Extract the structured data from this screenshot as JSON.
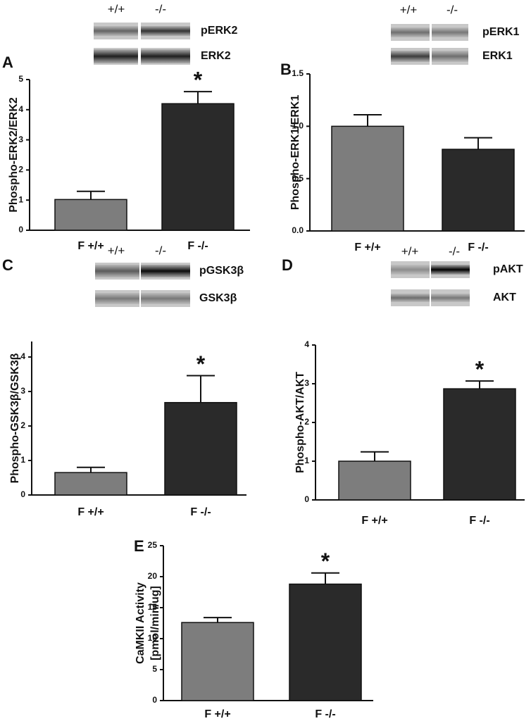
{
  "chart_data": [
    {
      "type": "bar",
      "panel": "A",
      "genotypes": [
        "+/+",
        "-/-"
      ],
      "bands": [
        "pERK2",
        "ERK2"
      ],
      "ylabel": [
        "Phospho-ERK2/ERK2"
      ],
      "categories": [
        "F +/+",
        "F -/-"
      ],
      "values": [
        1.02,
        4.2
      ],
      "errors": [
        0.27,
        0.4
      ],
      "colors": [
        "#7d7d7d",
        "#2a2a2a"
      ],
      "annotation": "*",
      "ylim": [
        0,
        5
      ],
      "yticks": [
        0,
        1,
        2,
        3,
        4,
        5
      ]
    },
    {
      "type": "bar",
      "panel": "B",
      "genotypes": [
        "+/+",
        "-/-"
      ],
      "bands": [
        "pERK1",
        "ERK1"
      ],
      "ylabel": [
        "Phospho-ERK1/ERK1"
      ],
      "categories": [
        "F +/+",
        "F -/-"
      ],
      "values": [
        1.0,
        0.78
      ],
      "errors": [
        0.11,
        0.11
      ],
      "colors": [
        "#7d7d7d",
        "#2a2a2a"
      ],
      "ylim": [
        0,
        1.5
      ],
      "yticks": [
        {
          "value": 0,
          "label": "0.0"
        },
        {
          "value": 0.5,
          "label": "0.5"
        },
        {
          "value": 1,
          "label": "1.0"
        },
        {
          "value": 1.5,
          "label": "1.5"
        }
      ]
    },
    {
      "type": "bar",
      "panel": "C",
      "genotypes": [
        "+/+",
        "-/-"
      ],
      "bands": [
        "pGSK3β",
        "GSK3β"
      ],
      "ylabel": [
        "Phospho-GSK3β/GSK3β"
      ],
      "categories": [
        "F +/+",
        "F -/-"
      ],
      "values": [
        0.65,
        2.68
      ],
      "errors": [
        0.15,
        0.78
      ],
      "colors": [
        "#7d7d7d",
        "#2a2a2a"
      ],
      "annotation": "*",
      "ylim": [
        0,
        4.45
      ],
      "yticks": [
        0,
        1,
        2,
        3,
        4
      ]
    },
    {
      "type": "bar",
      "panel": "D",
      "genotypes": [
        "+/+",
        "-/-"
      ],
      "bands": [
        "pAKT",
        "AKT"
      ],
      "ylabel": [
        "Phospho-AKT/AKT"
      ],
      "categories": [
        "F +/+",
        "F -/-"
      ],
      "values": [
        1.0,
        2.87
      ],
      "errors": [
        0.24,
        0.2
      ],
      "colors": [
        "#7d7d7d",
        "#2a2a2a"
      ],
      "annotation": "*",
      "ylim": [
        0,
        4
      ],
      "yticks": [
        0,
        1,
        2,
        3,
        4
      ]
    },
    {
      "type": "bar",
      "panel": "E",
      "ylabel": [
        "CaMKII Activity",
        "[pmol/min/ug]"
      ],
      "categories": [
        "F +/+",
        "F -/-"
      ],
      "values": [
        12.6,
        18.8
      ],
      "errors": [
        0.8,
        1.8
      ],
      "colors": [
        "#7d7d7d",
        "#2a2a2a"
      ],
      "annotation": "*",
      "ylim": [
        0,
        25
      ],
      "yticks": [
        0,
        5,
        10,
        15,
        20,
        25
      ]
    }
  ]
}
